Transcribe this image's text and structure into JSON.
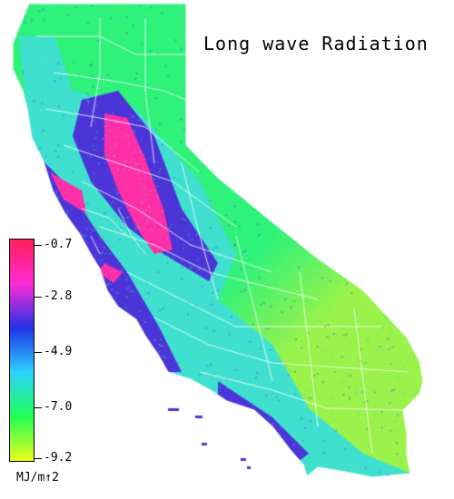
{
  "title": "Long wave Radiation",
  "legend": {
    "ticks": [
      "-0.7",
      "-2.8",
      "-4.9",
      "-7.0",
      "-9.2"
    ],
    "unit": "MJ/m↑2",
    "colors": [
      "#ff1f5a",
      "#ff2bd6",
      "#2233e6",
      "#2bd2ff",
      "#22ff55",
      "#e8ff1a"
    ]
  },
  "map": {
    "region": "California",
    "colors": {
      "green": "#2ef27a",
      "yellowgreen": "#9af24a",
      "cyan": "#3fe0d0",
      "blue": "#4b35d9",
      "magenta": "#ff2fa8",
      "border": "#ffffff"
    }
  }
}
